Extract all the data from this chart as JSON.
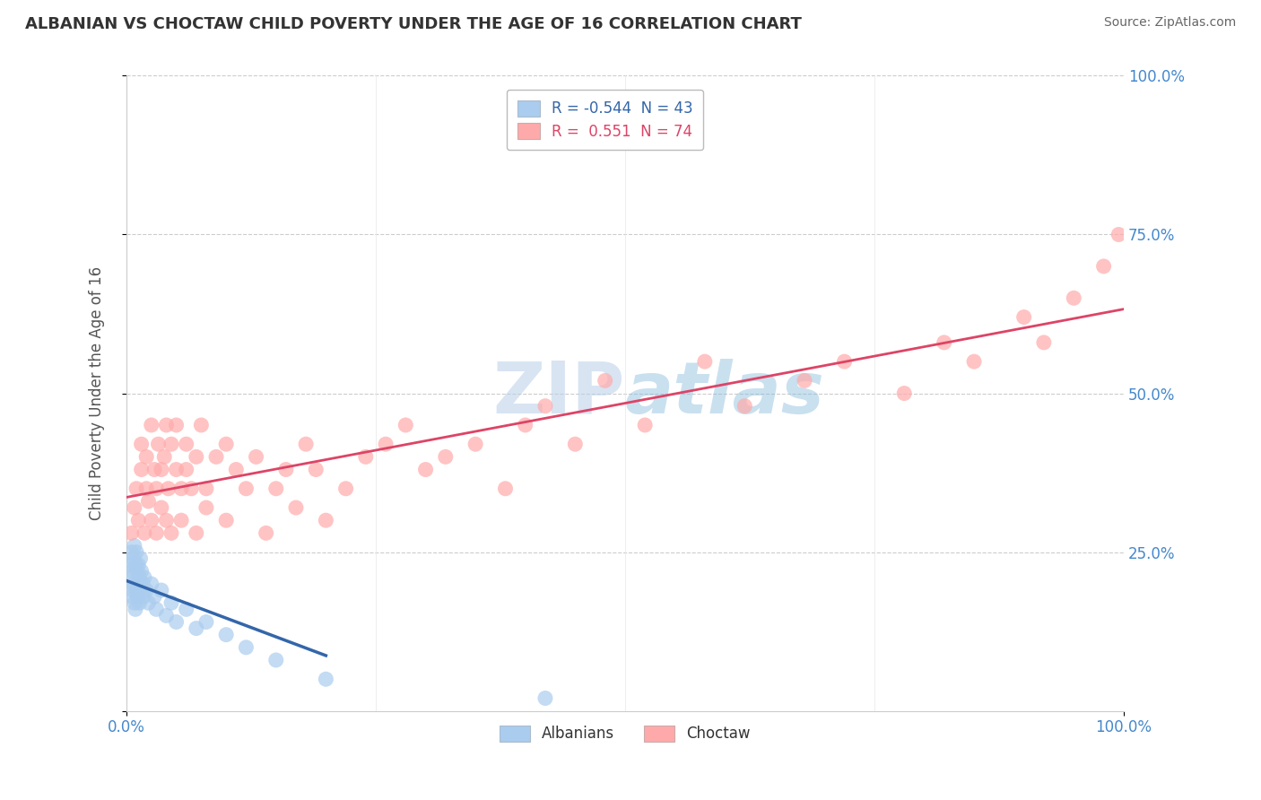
{
  "title": "ALBANIAN VS CHOCTAW CHILD POVERTY UNDER THE AGE OF 16 CORRELATION CHART",
  "source": "Source: ZipAtlas.com",
  "ylabel": "Child Poverty Under the Age of 16",
  "xlim": [
    0,
    100
  ],
  "ylim": [
    0,
    100
  ],
  "albanians_R": -0.544,
  "albanians_N": 43,
  "choctaw_R": 0.551,
  "choctaw_N": 74,
  "legend_labels": [
    "Albanians",
    "Choctaw"
  ],
  "blue_dot_color": "#aaccee",
  "blue_line_color": "#3366aa",
  "pink_dot_color": "#ffaaaa",
  "pink_line_color": "#dd4466",
  "watermark_color": "#c8dff0",
  "background_color": "#ffffff",
  "grid_color": "#cccccc",
  "tick_color": "#4488cc",
  "title_color": "#333333",
  "source_color": "#666666",
  "albanians_x": [
    0.3,
    0.4,
    0.5,
    0.5,
    0.6,
    0.6,
    0.7,
    0.7,
    0.8,
    0.8,
    0.9,
    0.9,
    1.0,
    1.0,
    1.1,
    1.1,
    1.2,
    1.2,
    1.3,
    1.3,
    1.4,
    1.4,
    1.5,
    1.6,
    1.7,
    1.8,
    2.0,
    2.2,
    2.5,
    2.8,
    3.0,
    3.5,
    4.0,
    4.5,
    5.0,
    6.0,
    7.0,
    8.0,
    10.0,
    12.0,
    15.0,
    20.0,
    42.0
  ],
  "albanians_y": [
    23,
    21,
    25,
    18,
    22,
    19,
    24,
    20,
    26,
    17,
    23,
    16,
    25,
    19,
    22,
    18,
    20,
    23,
    17,
    21,
    19,
    24,
    22,
    20,
    18,
    21,
    19,
    17,
    20,
    18,
    16,
    19,
    15,
    17,
    14,
    16,
    13,
    14,
    12,
    10,
    8,
    5,
    2
  ],
  "choctaw_x": [
    0.5,
    0.8,
    1.0,
    1.2,
    1.5,
    1.5,
    1.8,
    2.0,
    2.0,
    2.2,
    2.5,
    2.5,
    2.8,
    3.0,
    3.0,
    3.2,
    3.5,
    3.5,
    3.8,
    4.0,
    4.0,
    4.2,
    4.5,
    4.5,
    5.0,
    5.0,
    5.5,
    5.5,
    6.0,
    6.0,
    6.5,
    7.0,
    7.0,
    7.5,
    8.0,
    8.0,
    9.0,
    10.0,
    10.0,
    11.0,
    12.0,
    13.0,
    14.0,
    15.0,
    16.0,
    17.0,
    18.0,
    19.0,
    20.0,
    22.0,
    24.0,
    26.0,
    28.0,
    30.0,
    32.0,
    35.0,
    38.0,
    40.0,
    42.0,
    45.0,
    48.0,
    52.0,
    58.0,
    62.0,
    68.0,
    72.0,
    78.0,
    82.0,
    85.0,
    90.0,
    92.0,
    95.0,
    98.0,
    99.5
  ],
  "choctaw_y": [
    28,
    32,
    35,
    30,
    38,
    42,
    28,
    35,
    40,
    33,
    45,
    30,
    38,
    35,
    28,
    42,
    38,
    32,
    40,
    30,
    45,
    35,
    42,
    28,
    38,
    45,
    35,
    30,
    42,
    38,
    35,
    40,
    28,
    45,
    35,
    32,
    40,
    42,
    30,
    38,
    35,
    40,
    28,
    35,
    38,
    32,
    42,
    38,
    30,
    35,
    40,
    42,
    45,
    38,
    40,
    42,
    35,
    45,
    48,
    42,
    52,
    45,
    55,
    48,
    52,
    55,
    50,
    58,
    55,
    62,
    58,
    65,
    70,
    75
  ]
}
